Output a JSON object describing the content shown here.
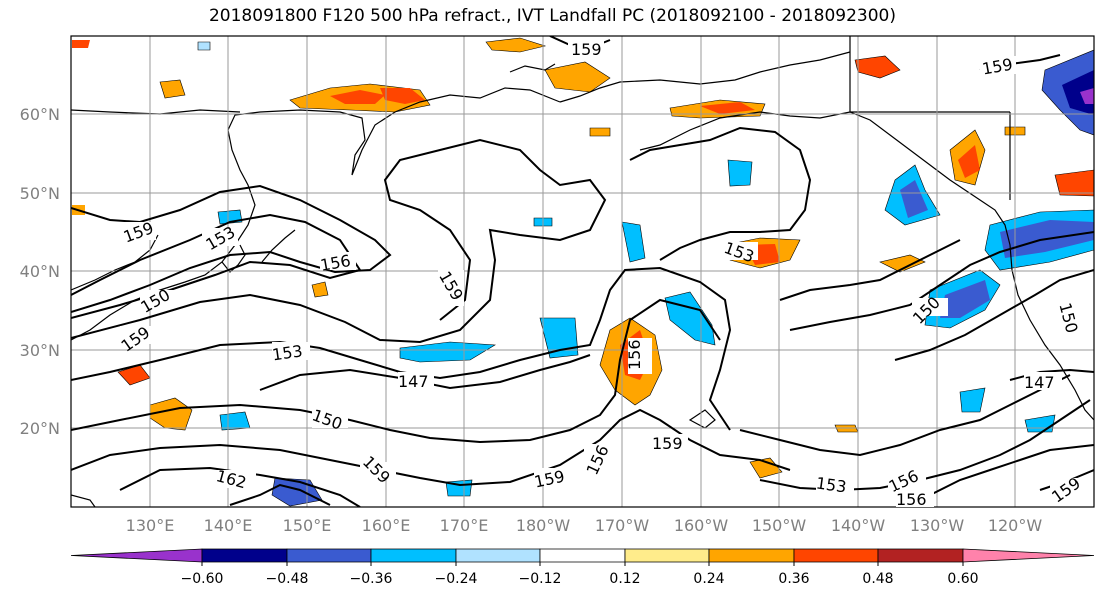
{
  "title": "2018091800 F120 500 hPa refract., IVT Landfall PC (2018092100 - 2018092300)",
  "lat_labels": [
    "60°N",
    "50°N",
    "40°N",
    "30°N",
    "20°N"
  ],
  "lon_labels": [
    "130°E",
    "140°E",
    "150°E",
    "160°E",
    "170°E",
    "180°W",
    "170°W",
    "160°W",
    "150°W",
    "140°W",
    "130°W",
    "120°W"
  ],
  "contour_labels": [
    "159",
    "153",
    "159",
    "156",
    "159",
    "150",
    "153",
    "159",
    "156",
    "153",
    "147",
    "150",
    "162",
    "159",
    "156",
    "159",
    "159",
    "153",
    "156",
    "156",
    "159",
    "150",
    "150",
    "147",
    "159"
  ],
  "colorbar": {
    "ticks": [
      "−0.60",
      "−0.48",
      "−0.36",
      "−0.24",
      "−0.12",
      "0.12",
      "0.24",
      "0.36",
      "0.48",
      "0.60"
    ],
    "colors": [
      "#9932cc",
      "#00008b",
      "#3a5bd0",
      "#00bfff",
      "#b0e2ff",
      "#ffffff",
      "#ffec8b",
      "#ffa500",
      "#ff4500",
      "#b22222",
      "#ff82ab"
    ]
  }
}
